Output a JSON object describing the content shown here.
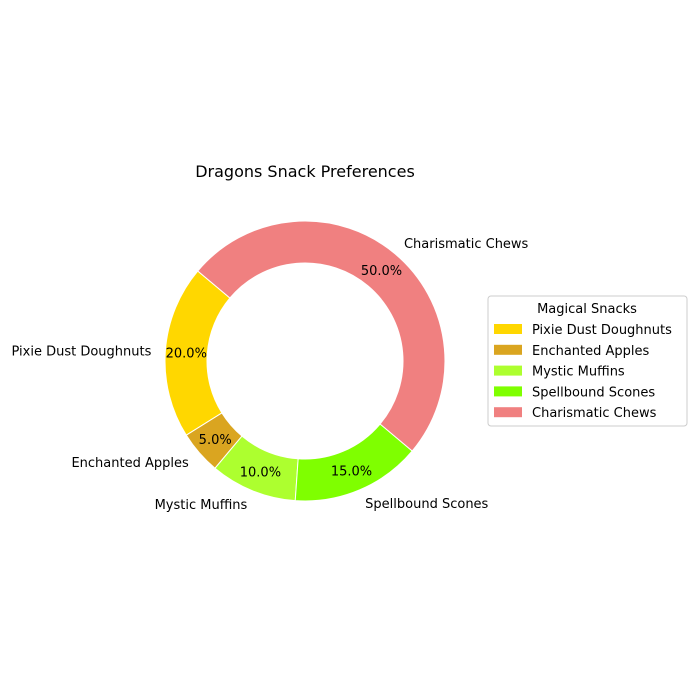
{
  "chart_data": {
    "type": "pie",
    "title": "Dragons Snack Preferences",
    "categories": [
      "Pixie Dust Doughnuts",
      "Enchanted Apples",
      "Mystic Muffins",
      "Spellbound Scones",
      "Charismatic Chews"
    ],
    "values": [
      20,
      5,
      10,
      15,
      50
    ],
    "percent_labels": [
      "20.0%",
      "5.0%",
      "10.0%",
      "15.0%",
      "50.0%"
    ],
    "colors": [
      "#FFD700",
      "#DAA520",
      "#ADFF2F",
      "#7FFF00",
      "#F08080"
    ],
    "start_angle_deg": 140,
    "donut": true,
    "legend": {
      "title": "Magical Snacks",
      "placement": "right",
      "entries": [
        "Pixie Dust Doughnuts",
        "Enchanted Apples",
        "Mystic Muffins",
        "Spellbound Scones",
        "Charismatic Chews"
      ]
    }
  }
}
